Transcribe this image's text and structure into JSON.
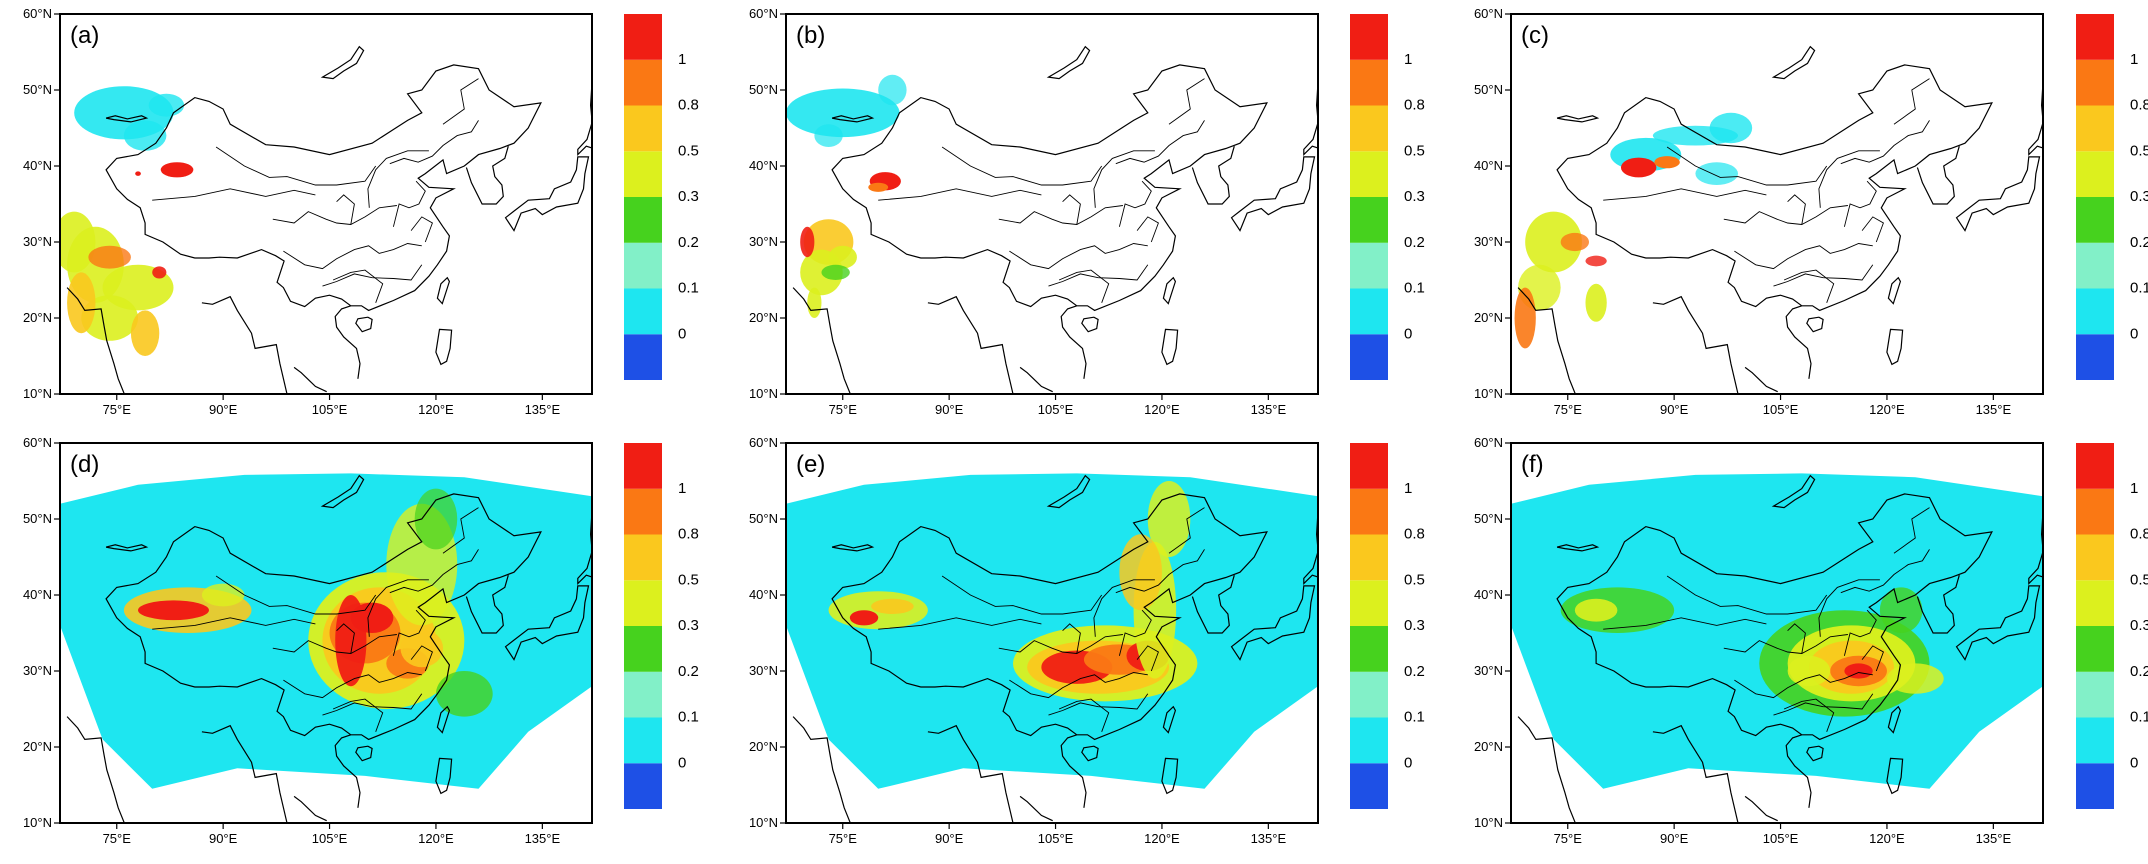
{
  "figure": {
    "lat_ticks": [
      "60°N",
      "50°N",
      "40°N",
      "30°N",
      "20°N",
      "10°N"
    ],
    "lon_ticks": [
      "75°E",
      "90°E",
      "105°E",
      "120°E",
      "135°E"
    ],
    "colorbar": {
      "colors": [
        "#1e50e6",
        "#1ee6f0",
        "#82f0c8",
        "#46d21e",
        "#dcf01e",
        "#fac81e",
        "#fa7814",
        "#f01e14"
      ],
      "labels": [
        "0",
        "0.1",
        "0.2",
        "0.3",
        "0.5",
        "0.8",
        "1"
      ]
    },
    "panels": [
      {
        "label": "(a)",
        "kind": "satellite",
        "tint": "a"
      },
      {
        "label": "(b)",
        "kind": "satellite",
        "tint": "b"
      },
      {
        "label": "(c)",
        "kind": "satellite",
        "tint": "c"
      },
      {
        "label": "(d)",
        "kind": "model",
        "tint": "d"
      },
      {
        "label": "(e)",
        "kind": "model",
        "tint": "e"
      },
      {
        "label": "(f)",
        "kind": "model",
        "tint": "f"
      }
    ]
  }
}
